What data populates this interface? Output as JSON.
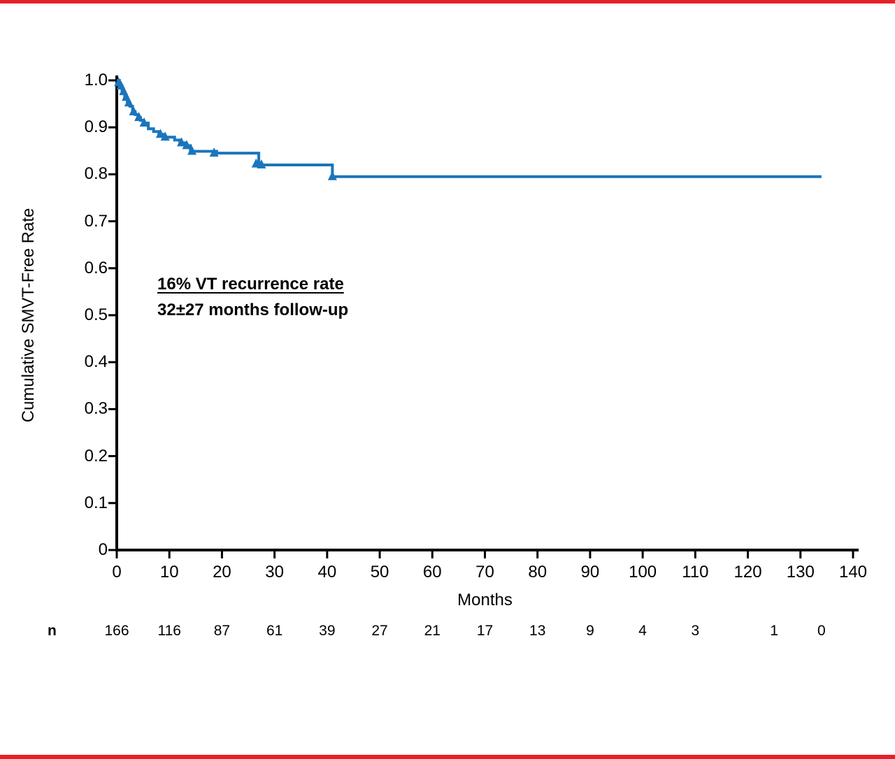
{
  "page": {
    "background": "#ffffff",
    "border_color": "#e52126"
  },
  "annotation": {
    "line1": "16% VT recurrence rate",
    "line2": "32±27 months follow-up"
  },
  "chart_data": {
    "type": "line",
    "subtype": "kaplan-meier-step",
    "title": "",
    "xlabel": "Months",
    "ylabel": "Cumulative SMVT-Free Rate",
    "xlim": [
      0,
      140
    ],
    "ylim": [
      0,
      1.0
    ],
    "xticks": [
      0,
      10,
      20,
      30,
      40,
      50,
      60,
      70,
      80,
      90,
      100,
      110,
      120,
      130,
      140
    ],
    "xtick_labels": [
      "0",
      "10",
      "20",
      "30",
      "40",
      "50",
      "60",
      "70",
      "80",
      "90",
      "100",
      "110",
      "120",
      "130",
      "140"
    ],
    "yticks": [
      0,
      0.1,
      0.2,
      0.3,
      0.4,
      0.5,
      0.6,
      0.7,
      0.8,
      0.9,
      1.0
    ],
    "ytick_labels": [
      "0",
      "0.1",
      "0.2",
      "0.3",
      "0.4",
      "0.5",
      "0.6",
      "0.7",
      "0.8",
      "0.9",
      "1.0"
    ],
    "grid": false,
    "legend": false,
    "series": [
      {
        "name": "Cumulative SMVT-free rate",
        "color": "#1b75bc",
        "marker": "triangle-up",
        "step_points": [
          [
            0,
            1.0
          ],
          [
            0.5,
            0.988
          ],
          [
            1,
            0.976
          ],
          [
            1.5,
            0.964
          ],
          [
            2,
            0.952
          ],
          [
            2.5,
            0.945
          ],
          [
            3,
            0.933
          ],
          [
            3.5,
            0.927
          ],
          [
            4,
            0.921
          ],
          [
            4.5,
            0.915
          ],
          [
            5,
            0.909
          ],
          [
            6,
            0.897
          ],
          [
            7,
            0.891
          ],
          [
            8,
            0.885
          ],
          [
            9,
            0.879
          ],
          [
            11,
            0.873
          ],
          [
            12,
            0.867
          ],
          [
            13,
            0.861
          ],
          [
            14,
            0.849
          ],
          [
            19,
            0.845
          ],
          [
            27,
            0.82
          ],
          [
            41,
            0.795
          ],
          [
            134,
            0.795
          ]
        ],
        "censor_marks": [
          [
            0.35,
            0.995
          ],
          [
            0.8,
            0.988
          ],
          [
            1.3,
            0.976
          ],
          [
            1.8,
            0.964
          ],
          [
            2.3,
            0.952
          ],
          [
            3.2,
            0.933
          ],
          [
            4.2,
            0.921
          ],
          [
            5.2,
            0.909
          ],
          [
            8.3,
            0.885
          ],
          [
            9.2,
            0.879
          ],
          [
            12.3,
            0.867
          ],
          [
            13.3,
            0.861
          ],
          [
            14.3,
            0.849
          ],
          [
            18.5,
            0.845
          ],
          [
            26.5,
            0.822
          ],
          [
            27.5,
            0.82
          ],
          [
            41,
            0.795
          ]
        ]
      }
    ],
    "risk_table": {
      "label": "n",
      "entries": [
        {
          "month": 0,
          "value": "166"
        },
        {
          "month": 10,
          "value": "116"
        },
        {
          "month": 20,
          "value": "87"
        },
        {
          "month": 30,
          "value": "61"
        },
        {
          "month": 40,
          "value": "39"
        },
        {
          "month": 50,
          "value": "27"
        },
        {
          "month": 60,
          "value": "21"
        },
        {
          "month": 70,
          "value": "17"
        },
        {
          "month": 80,
          "value": "13"
        },
        {
          "month": 90,
          "value": "9"
        },
        {
          "month": 100,
          "value": "4"
        },
        {
          "month": 110,
          "value": "3"
        },
        {
          "month": 125,
          "value": "1"
        },
        {
          "month": 134,
          "value": "0"
        }
      ]
    }
  }
}
